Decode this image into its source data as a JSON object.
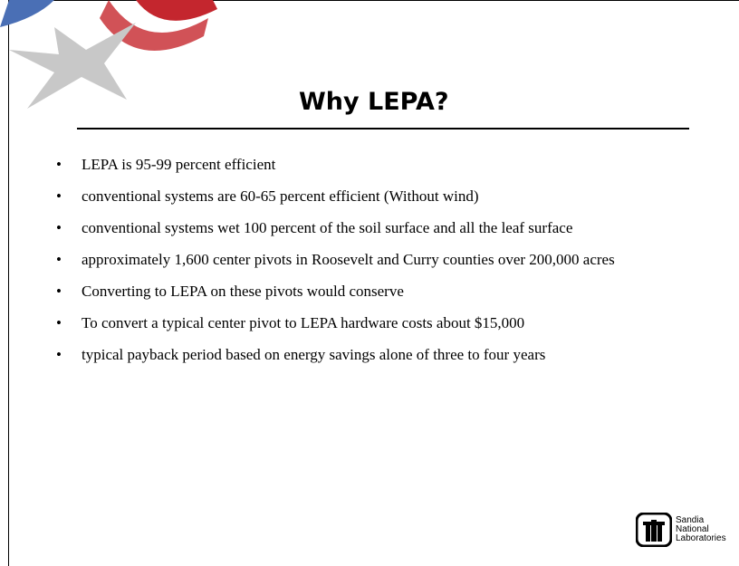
{
  "title": "Why LEPA?",
  "bullets": [
    "LEPA is 95-99 percent efficient",
    "conventional systems are 60-65 percent efficient  (Without wind)",
    "conventional systems wet 100 percent of the soil surface and all the leaf surface",
    "approximately 1,600 center pivots in Roosevelt and Curry counties over 200,000 acres",
    "Converting to LEPA on these pivots would conserve",
    "To convert a typical center pivot to LEPA hardware costs about $15,000",
    "typical payback period based on energy savings alone of three to four years"
  ],
  "logo": {
    "lines": [
      "Sandia",
      "National",
      "Laboratories"
    ]
  }
}
